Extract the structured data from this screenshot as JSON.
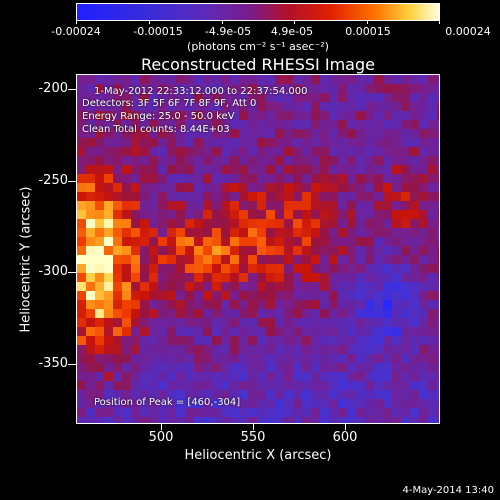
{
  "colorbar": {
    "tick_labels": [
      "-0.00024",
      "-0.00015",
      "-4.9e-05",
      "4.9e-05",
      "0.00015",
      "0.00024"
    ],
    "units": "(photons cm⁻² s⁻¹ asec⁻²)"
  },
  "title": "Reconstructed RHESSI Image",
  "info": {
    "time_range": "1-May-2012 22:33:12.000 to 22:37:54.000",
    "detectors": "Detectors: 3F 5F 6F 7F 8F 9F, Att 0",
    "energy": "Energy Range: 25.0 - 50.0 keV",
    "clean": "Clean    Total counts: 8.44E+03",
    "peak": "Position of Peak = [460,-304]"
  },
  "axes": {
    "xlabel": "Heliocentric X (arcsec)",
    "ylabel": "Heliocentric Y (arcsec)",
    "x_ticks": [
      "500",
      "550",
      "600"
    ],
    "y_ticks": [
      "-200",
      "-250",
      "-300",
      "-350"
    ]
  },
  "footer": {
    "date": "4-May-2014 13:40"
  }
}
